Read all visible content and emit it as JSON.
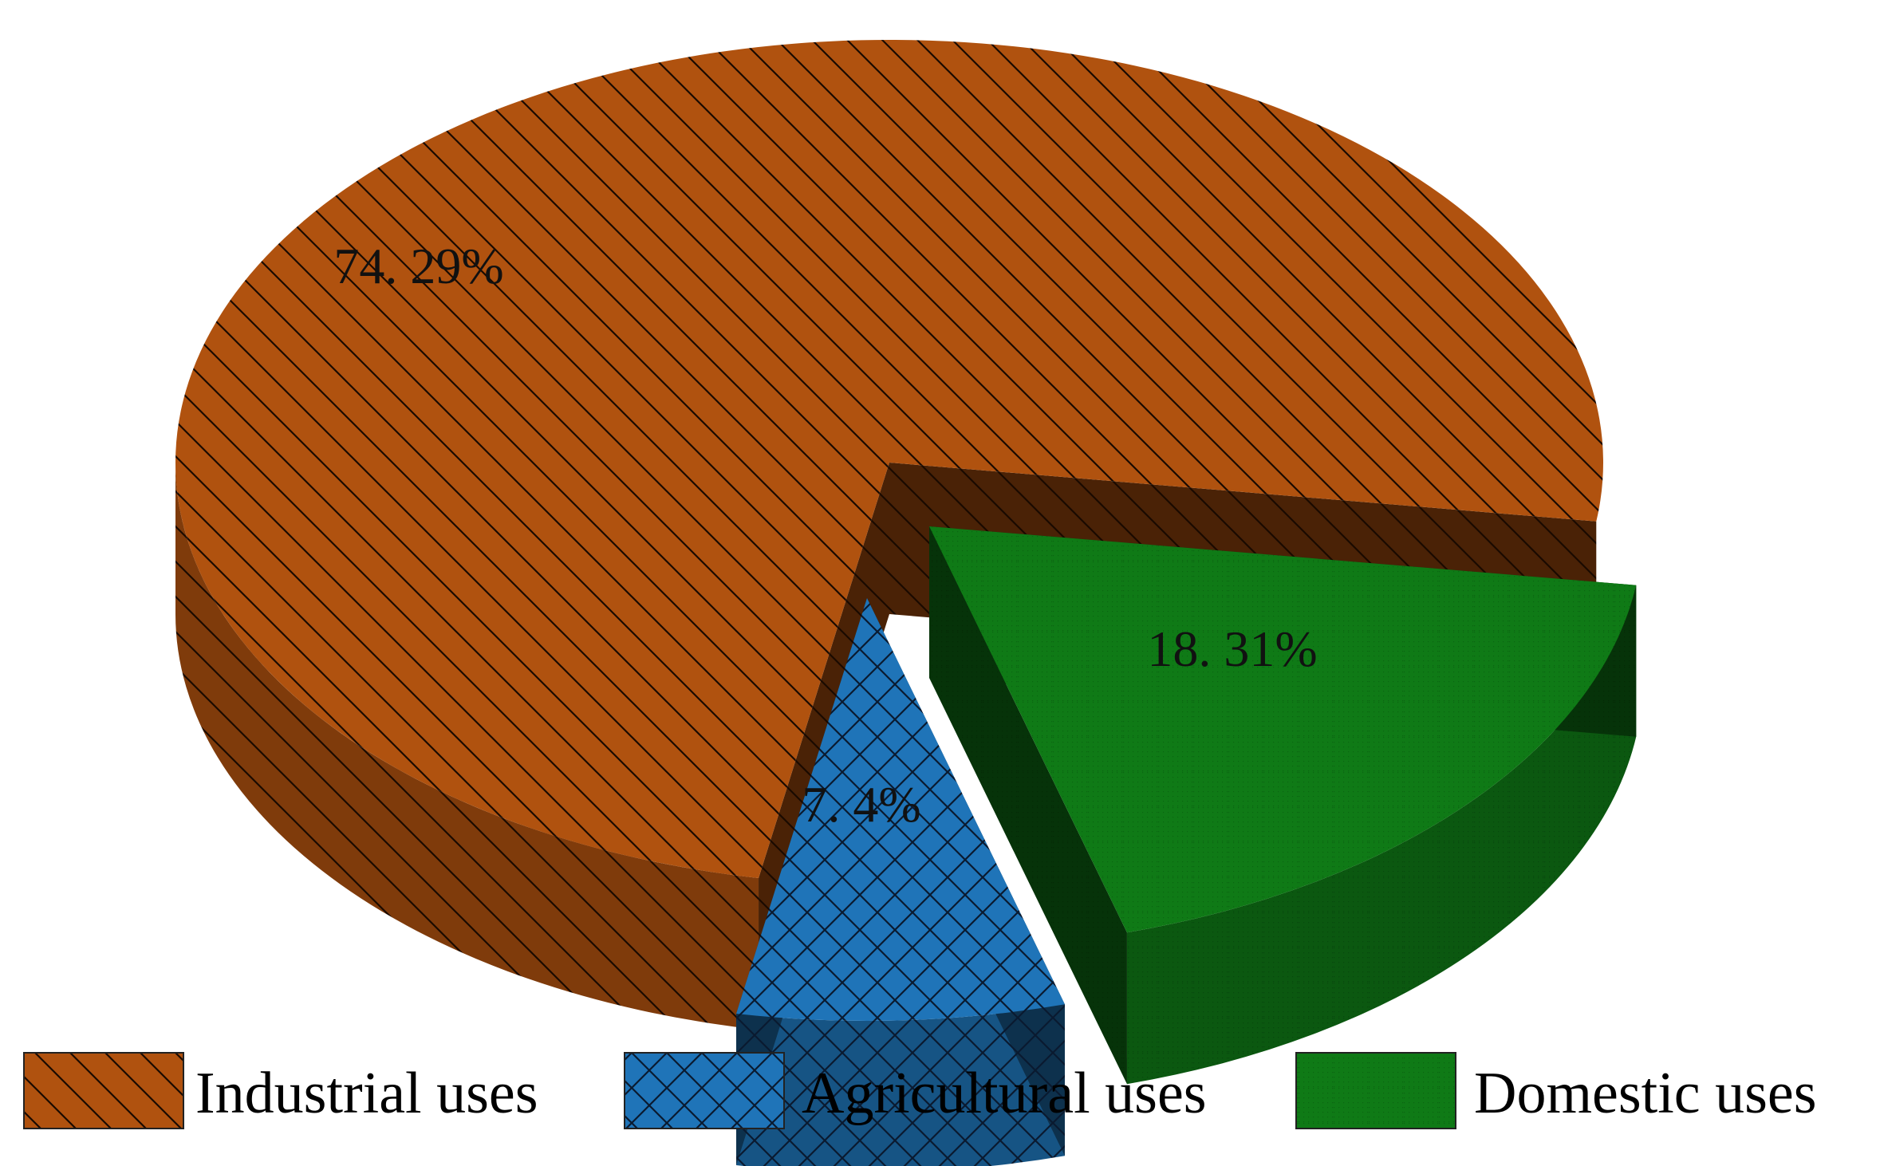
{
  "chart_data": {
    "type": "pie",
    "style": "3d-exploded",
    "categories": [
      "Industrial uses",
      "Agricultural uses",
      "Domestic uses"
    ],
    "values": [
      74.29,
      7.4,
      18.31
    ],
    "labels": [
      "74. 29%",
      "7. 4%",
      "18. 31%"
    ],
    "colors": [
      "#B0520F",
      "#1F74B8",
      "#0F7A16"
    ],
    "patterns": [
      "diagonal-hatch",
      "cross-hatch",
      "fine-dots"
    ],
    "legend": {
      "position": "bottom",
      "entries": [
        "Industrial uses",
        "Agricultural uses",
        "Domestic uses"
      ]
    },
    "title": ""
  }
}
